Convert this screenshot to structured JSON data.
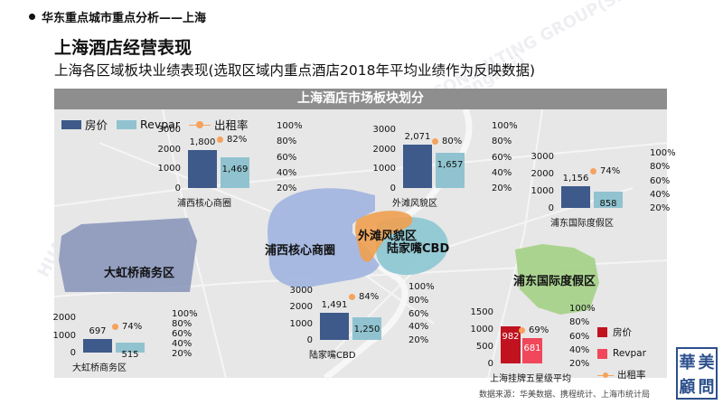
{
  "header": {
    "breadcrumb": "华东重点城市重点分析——上海",
    "title": "上海酒店经营表现",
    "subtitle": "上海各区域板块业绩表现(选取区域内重点酒店2018年平均业绩作为反映数据)"
  },
  "map": {
    "banner": "上海酒店市场板块划分",
    "legend": {
      "price": "房价",
      "revpar": "Revpar",
      "occupancy": "出租率"
    },
    "district_labels": {
      "puxi": "浦西核心商圈",
      "bund": "外滩风貌区",
      "lujiazui": "陆家嘴CBD",
      "hongqiao": "大虹桥商务区",
      "pudong_resort": "浦东国际度假区"
    }
  },
  "colors": {
    "price": "#3d5a8a",
    "revpar": "#90c3cf",
    "occupancy": "#f5a25d",
    "avg_price": "#c1121f",
    "avg_revpar": "#f0475a",
    "seal": "#2c4f8c"
  },
  "chart_data": [
    {
      "type": "bar",
      "title": "浦西核心商圈",
      "categories": [
        "房价",
        "Revpar"
      ],
      "values": [
        1800,
        1469
      ],
      "occupancy": "82%",
      "left_ticks": [
        "3000",
        "2000",
        "1000",
        "0"
      ],
      "right_ticks": [
        "100%",
        "80%",
        "60%",
        "40%",
        "20%"
      ],
      "ylim": [
        0,
        3000
      ]
    },
    {
      "type": "bar",
      "title": "外滩风貌区",
      "categories": [
        "房价",
        "Revpar"
      ],
      "values": [
        2071,
        1657
      ],
      "occupancy": "80%",
      "left_ticks": [
        "3000",
        "2000",
        "1000",
        "0"
      ],
      "right_ticks": [
        "100%",
        "80%",
        "60%",
        "40%",
        "20%"
      ],
      "ylim": [
        0,
        3000
      ]
    },
    {
      "type": "bar",
      "title": "浦东国际度假区",
      "categories": [
        "房价",
        "Revpar"
      ],
      "values": [
        1156,
        858
      ],
      "occupancy": "74%",
      "left_ticks": [
        "3000",
        "2000",
        "1000",
        "0"
      ],
      "right_ticks": [
        "100%",
        "80%",
        "60%",
        "40%",
        "20%"
      ],
      "ylim": [
        0,
        3000
      ]
    },
    {
      "type": "bar",
      "title": "陆家嘴CBD",
      "categories": [
        "房价",
        "Revpar"
      ],
      "values": [
        1491,
        1250
      ],
      "occupancy": "84%",
      "left_ticks": [
        "3000",
        "2000",
        "1000",
        "0"
      ],
      "right_ticks": [
        "100%",
        "80%",
        "60%",
        "40%",
        "20%"
      ],
      "ylim": [
        0,
        3000
      ]
    },
    {
      "type": "bar",
      "title": "大虹桥商务区",
      "categories": [
        "房价",
        "Revpar"
      ],
      "values": [
        697,
        515
      ],
      "occupancy": "74%",
      "left_ticks": [
        "2000",
        "1000",
        "0"
      ],
      "right_ticks": [
        "100%",
        "80%",
        "60%",
        "40%",
        "20%"
      ],
      "ylim": [
        0,
        2000
      ]
    },
    {
      "type": "bar",
      "title": "上海挂牌五星级平均",
      "categories": [
        "房价",
        "Revpar"
      ],
      "values": [
        982,
        681
      ],
      "occupancy": "69%",
      "left_ticks": [
        "1500",
        "1000",
        "500",
        "0"
      ],
      "right_ticks": [
        "100%",
        "80%",
        "60%",
        "40%",
        "20%"
      ],
      "ylim": [
        0,
        1500
      ]
    }
  ],
  "avg_legend": {
    "price": "房价",
    "revpar": "Revpar",
    "occupancy": "出租率"
  },
  "footer": {
    "source": "数据来源：华美数据、携程统计、上海市统计局",
    "seal_chars": [
      "華",
      "美",
      "顧",
      "問"
    ]
  },
  "watermarks": [
    "HUAMEI CONSULTING GROUP(Shanghai)",
    "HUAMEI CONSULTING",
    "HUAMEI CONSULTING GROUP(Shanghai)"
  ]
}
